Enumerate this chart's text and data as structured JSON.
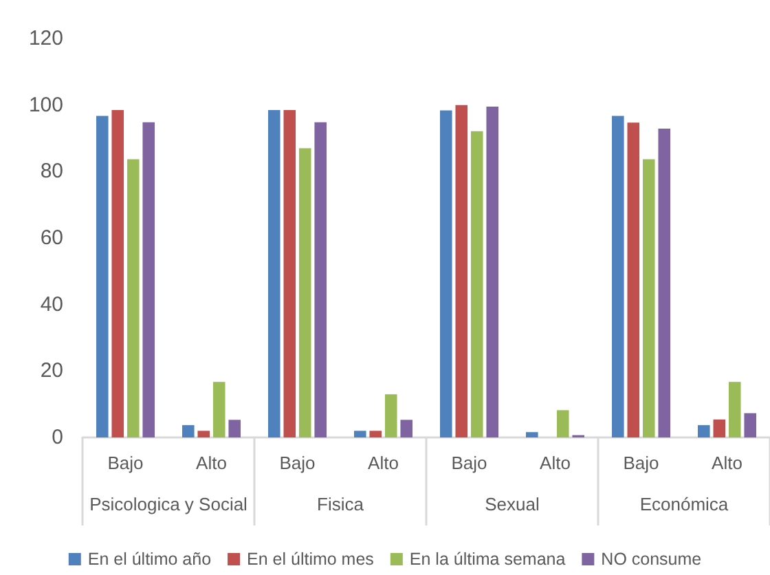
{
  "chart_data": {
    "type": "bar",
    "categories": [
      "Bajo",
      "Alto",
      "Bajo",
      "Alto",
      "Bajo",
      "Alto",
      "Bajo",
      "Alto"
    ],
    "annotations": [
      "Psicologica y Social",
      "Fisica",
      "Sexual",
      "Económica"
    ],
    "series": [
      {
        "name": "En el último año",
        "color": "#4f81bd",
        "values": [
          96.7,
          3.7,
          98.5,
          2,
          98.4,
          1.6,
          96.7,
          3.7
        ]
      },
      {
        "name": "En el último mes",
        "color": "#c0504d",
        "values": [
          98.5,
          2,
          98.5,
          2,
          100,
          0,
          94.7,
          5.4
        ]
      },
      {
        "name": "En la última semana",
        "color": "#9bbb59",
        "values": [
          83.7,
          16.7,
          87,
          13,
          92.1,
          8.2,
          83.7,
          16.7
        ]
      },
      {
        "name": "NO consume",
        "color": "#8064a2",
        "values": [
          94.8,
          5.3,
          94.8,
          5.3,
          99.5,
          0.7,
          92.9,
          7.3
        ]
      }
    ],
    "ylim": [
      0,
      120
    ],
    "yticks": [
      0,
      20,
      40,
      60,
      80,
      100,
      120
    ],
    "grid": false,
    "legend": "bottom"
  }
}
